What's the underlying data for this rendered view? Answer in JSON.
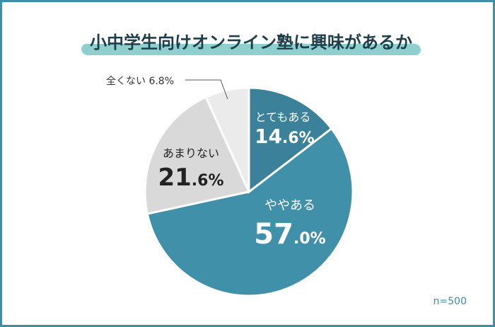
{
  "chart_data": {
    "type": "pie",
    "title": "小中学生向けオンライン塾に興味があるか",
    "slices": [
      {
        "label": "とてもある",
        "value": 14.6,
        "display": "14.6%",
        "color": "#3a8199"
      },
      {
        "label": "ややある",
        "value": 57.0,
        "display": "57.0%",
        "color": "#4190a9"
      },
      {
        "label": "あまりない",
        "value": 21.6,
        "display": "21.6%",
        "color": "#d9d9d9"
      },
      {
        "label": "全くない",
        "value": 6.8,
        "display": "6.8%",
        "color": "#ebebeb"
      }
    ],
    "start": "top",
    "direction": "clockwise",
    "note": "n=500",
    "accent_color": "#3f8ea5",
    "title_highlight_color": "#8fcfcf"
  }
}
